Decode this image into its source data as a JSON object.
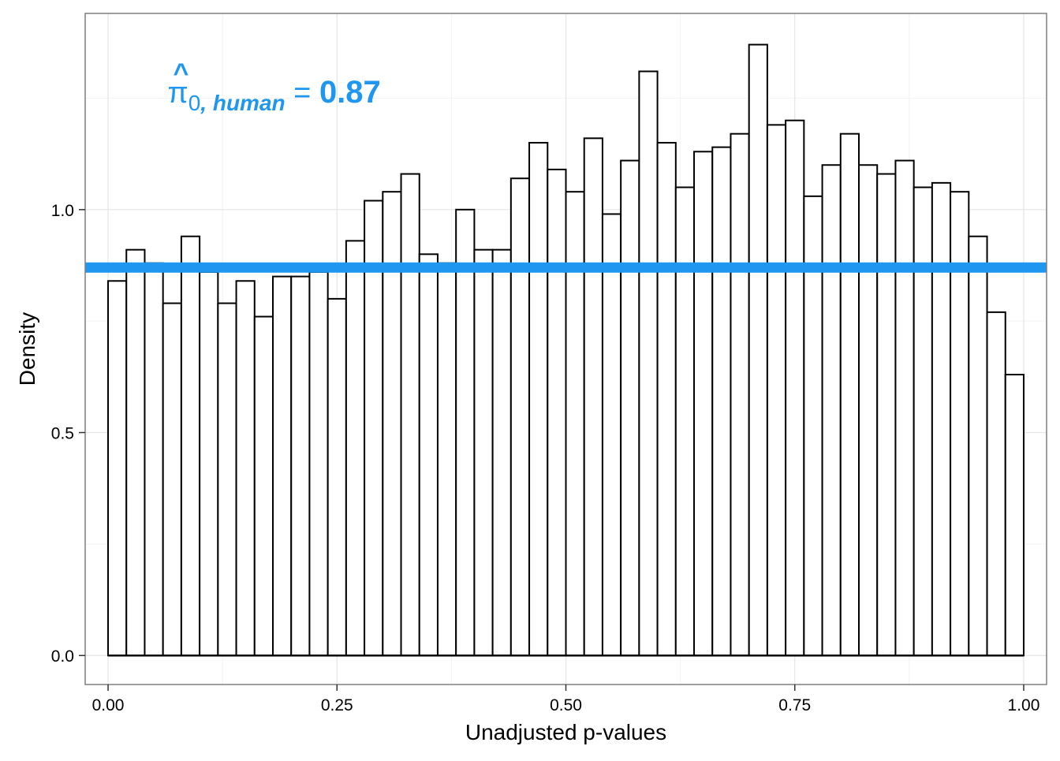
{
  "chart_data": {
    "type": "bar",
    "subtype": "histogram",
    "xlabel": "Unadjusted p-values",
    "ylabel": "Density",
    "xlim": [
      -0.025,
      1.025
    ],
    "ylim": [
      -0.065,
      1.44
    ],
    "x_ticks": [
      0.0,
      0.25,
      0.5,
      0.75,
      1.0
    ],
    "x_tick_labels": [
      "0.00",
      "0.25",
      "0.50",
      "0.75",
      "1.00"
    ],
    "y_ticks": [
      0.0,
      0.5,
      1.0
    ],
    "y_tick_labels": [
      "0.0",
      "0.5",
      "1.0"
    ],
    "grid": true,
    "bin_width": 0.02,
    "bin_start": 0.0,
    "values": [
      0.84,
      0.91,
      0.88,
      0.79,
      0.94,
      0.86,
      0.79,
      0.84,
      0.76,
      0.85,
      0.85,
      0.86,
      0.8,
      0.93,
      1.02,
      1.04,
      1.08,
      0.9,
      0.88,
      1.0,
      0.91,
      0.91,
      1.07,
      1.15,
      1.09,
      1.04,
      1.16,
      0.99,
      1.11,
      1.31,
      1.15,
      1.05,
      1.13,
      1.14,
      1.17,
      1.37,
      1.19,
      1.2,
      1.03,
      1.1,
      1.17,
      1.1,
      1.08,
      1.11,
      1.05,
      1.06,
      1.04,
      0.94,
      0.77,
      0.63
    ],
    "hline": {
      "y": 0.87,
      "color": "#1f96f0"
    },
    "annotation": {
      "symbol": "π",
      "hat": "^",
      "subscript_number": "0",
      "subscript_text": ", human",
      "equals": "=",
      "value": "0.87",
      "x": 0.065,
      "y": 1.24,
      "color": "#1f96f0"
    },
    "colors": {
      "bar_fill": "#ffffff",
      "bar_stroke": "#000000",
      "grid_major": "#e5e5e5",
      "grid_minor": "#f2f2f2",
      "panel_border": "#7f7f7f"
    }
  }
}
